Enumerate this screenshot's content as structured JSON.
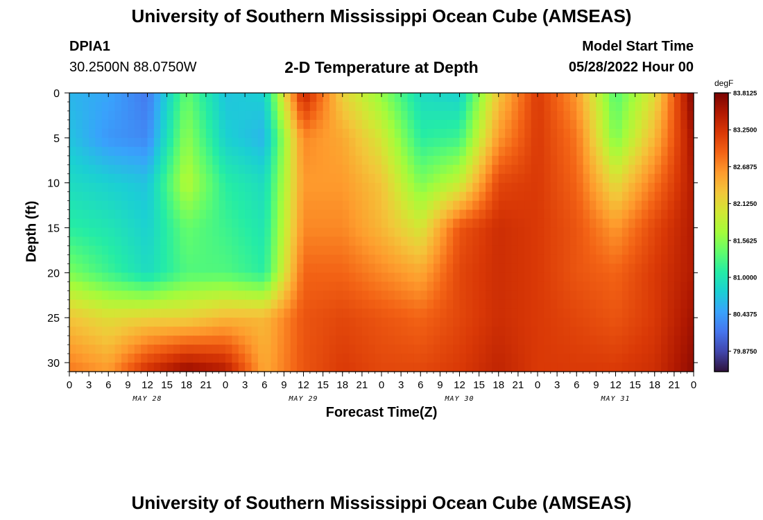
{
  "header": {
    "title": "University of Southern Mississippi Ocean Cube (AMSEAS)",
    "station": "DPIA1",
    "coordinates": "30.2500N  88.0750W",
    "subtitle": "2-D Temperature at Depth",
    "model_label": "Model Start Time",
    "model_time": "05/28/2022 Hour 00",
    "footer_title": "University of Southern Mississippi Ocean Cube (AMSEAS)"
  },
  "chart_data": {
    "type": "heatmap",
    "title": "2-D Temperature at Depth",
    "xlabel": "Forecast Time(Z)",
    "ylabel": "Depth (ft)",
    "xlim": [
      0,
      96
    ],
    "ylim": [
      0,
      31
    ],
    "x_tick_values": [
      0,
      3,
      6,
      9,
      12,
      15,
      18,
      21,
      24,
      27,
      30,
      33,
      36,
      39,
      42,
      45,
      48,
      51,
      54,
      57,
      60,
      63,
      66,
      69,
      72,
      75,
      78,
      81,
      84,
      87,
      90,
      93,
      96
    ],
    "x_tick_labels": [
      "0",
      "3",
      "6",
      "9",
      "12",
      "15",
      "18",
      "21",
      "0",
      "3",
      "6",
      "9",
      "12",
      "15",
      "18",
      "21",
      "0",
      "3",
      "6",
      "9",
      "12",
      "15",
      "18",
      "21",
      "0",
      "3",
      "6",
      "9",
      "12",
      "15",
      "18",
      "21",
      "0"
    ],
    "day_labels": [
      {
        "label": "MAY 28",
        "x": 12
      },
      {
        "label": "MAY 29",
        "x": 36
      },
      {
        "label": "MAY 30",
        "x": 60
      },
      {
        "label": "MAY 31",
        "x": 84
      }
    ],
    "y_ticks": [
      0,
      5,
      10,
      15,
      20,
      25,
      30
    ],
    "colorbar": {
      "unit": "degF",
      "min": 79.5625,
      "max": 83.8125,
      "tick_values": [
        83.8125,
        83.25,
        82.6875,
        82.125,
        81.5625,
        81.0,
        80.4375,
        79.875
      ],
      "tick_labels": [
        "83.8125",
        "83.2500",
        "82.6875",
        "82.1250",
        "81.5625",
        "81.0000",
        "80.4375",
        "79.8750"
      ],
      "colors": [
        "#30123b",
        "#4145ab",
        "#4675ed",
        "#39a2fc",
        "#1bcfd4",
        "#24eca6",
        "#61fc6c",
        "#a4fc3b",
        "#d1e834",
        "#f3c63a",
        "#fe9b2d",
        "#f36315",
        "#d93806",
        "#b11901",
        "#7a0403"
      ]
    },
    "x_grid": [
      0,
      6,
      12,
      18,
      24,
      30,
      36,
      42,
      48,
      54,
      60,
      66,
      72,
      78,
      84,
      90,
      96
    ],
    "depth_grid": [
      0,
      5,
      10,
      15,
      20,
      25,
      31
    ],
    "values": [
      [
        80.6,
        80.5,
        80.2,
        81.4,
        80.7,
        80.8,
        83.4,
        82.2,
        81.6,
        80.9,
        80.8,
        82.3,
        83.2,
        82.6,
        81.3,
        82.1,
        83.8
      ],
      [
        80.7,
        80.4,
        80.3,
        81.6,
        80.8,
        80.6,
        82.7,
        82.5,
        82.0,
        81.1,
        81.2,
        82.6,
        83.2,
        82.8,
        81.5,
        82.4,
        83.6
      ],
      [
        80.9,
        80.8,
        80.7,
        81.8,
        81.1,
        80.9,
        82.6,
        82.6,
        82.3,
        81.5,
        81.9,
        83.1,
        83.2,
        82.9,
        82.1,
        82.8,
        83.5
      ],
      [
        81.1,
        81.0,
        80.8,
        81.4,
        81.2,
        81.0,
        82.7,
        82.7,
        82.4,
        82.0,
        83.0,
        83.3,
        83.2,
        83.0,
        82.6,
        83.1,
        83.5
      ],
      [
        81.5,
        81.2,
        80.9,
        81.3,
        81.3,
        81.1,
        82.9,
        82.9,
        82.7,
        82.5,
        83.1,
        83.3,
        83.2,
        83.0,
        82.9,
        83.2,
        83.5
      ],
      [
        82.3,
        82.1,
        82.2,
        82.2,
        82.4,
        82.4,
        83.0,
        83.1,
        83.0,
        82.9,
        83.1,
        83.3,
        83.2,
        83.1,
        83.0,
        83.2,
        83.6
      ],
      [
        82.8,
        82.6,
        83.3,
        83.7,
        83.5,
        82.5,
        83.0,
        83.2,
        83.1,
        83.1,
        83.2,
        83.4,
        83.2,
        83.2,
        83.2,
        83.3,
        83.7
      ]
    ]
  }
}
